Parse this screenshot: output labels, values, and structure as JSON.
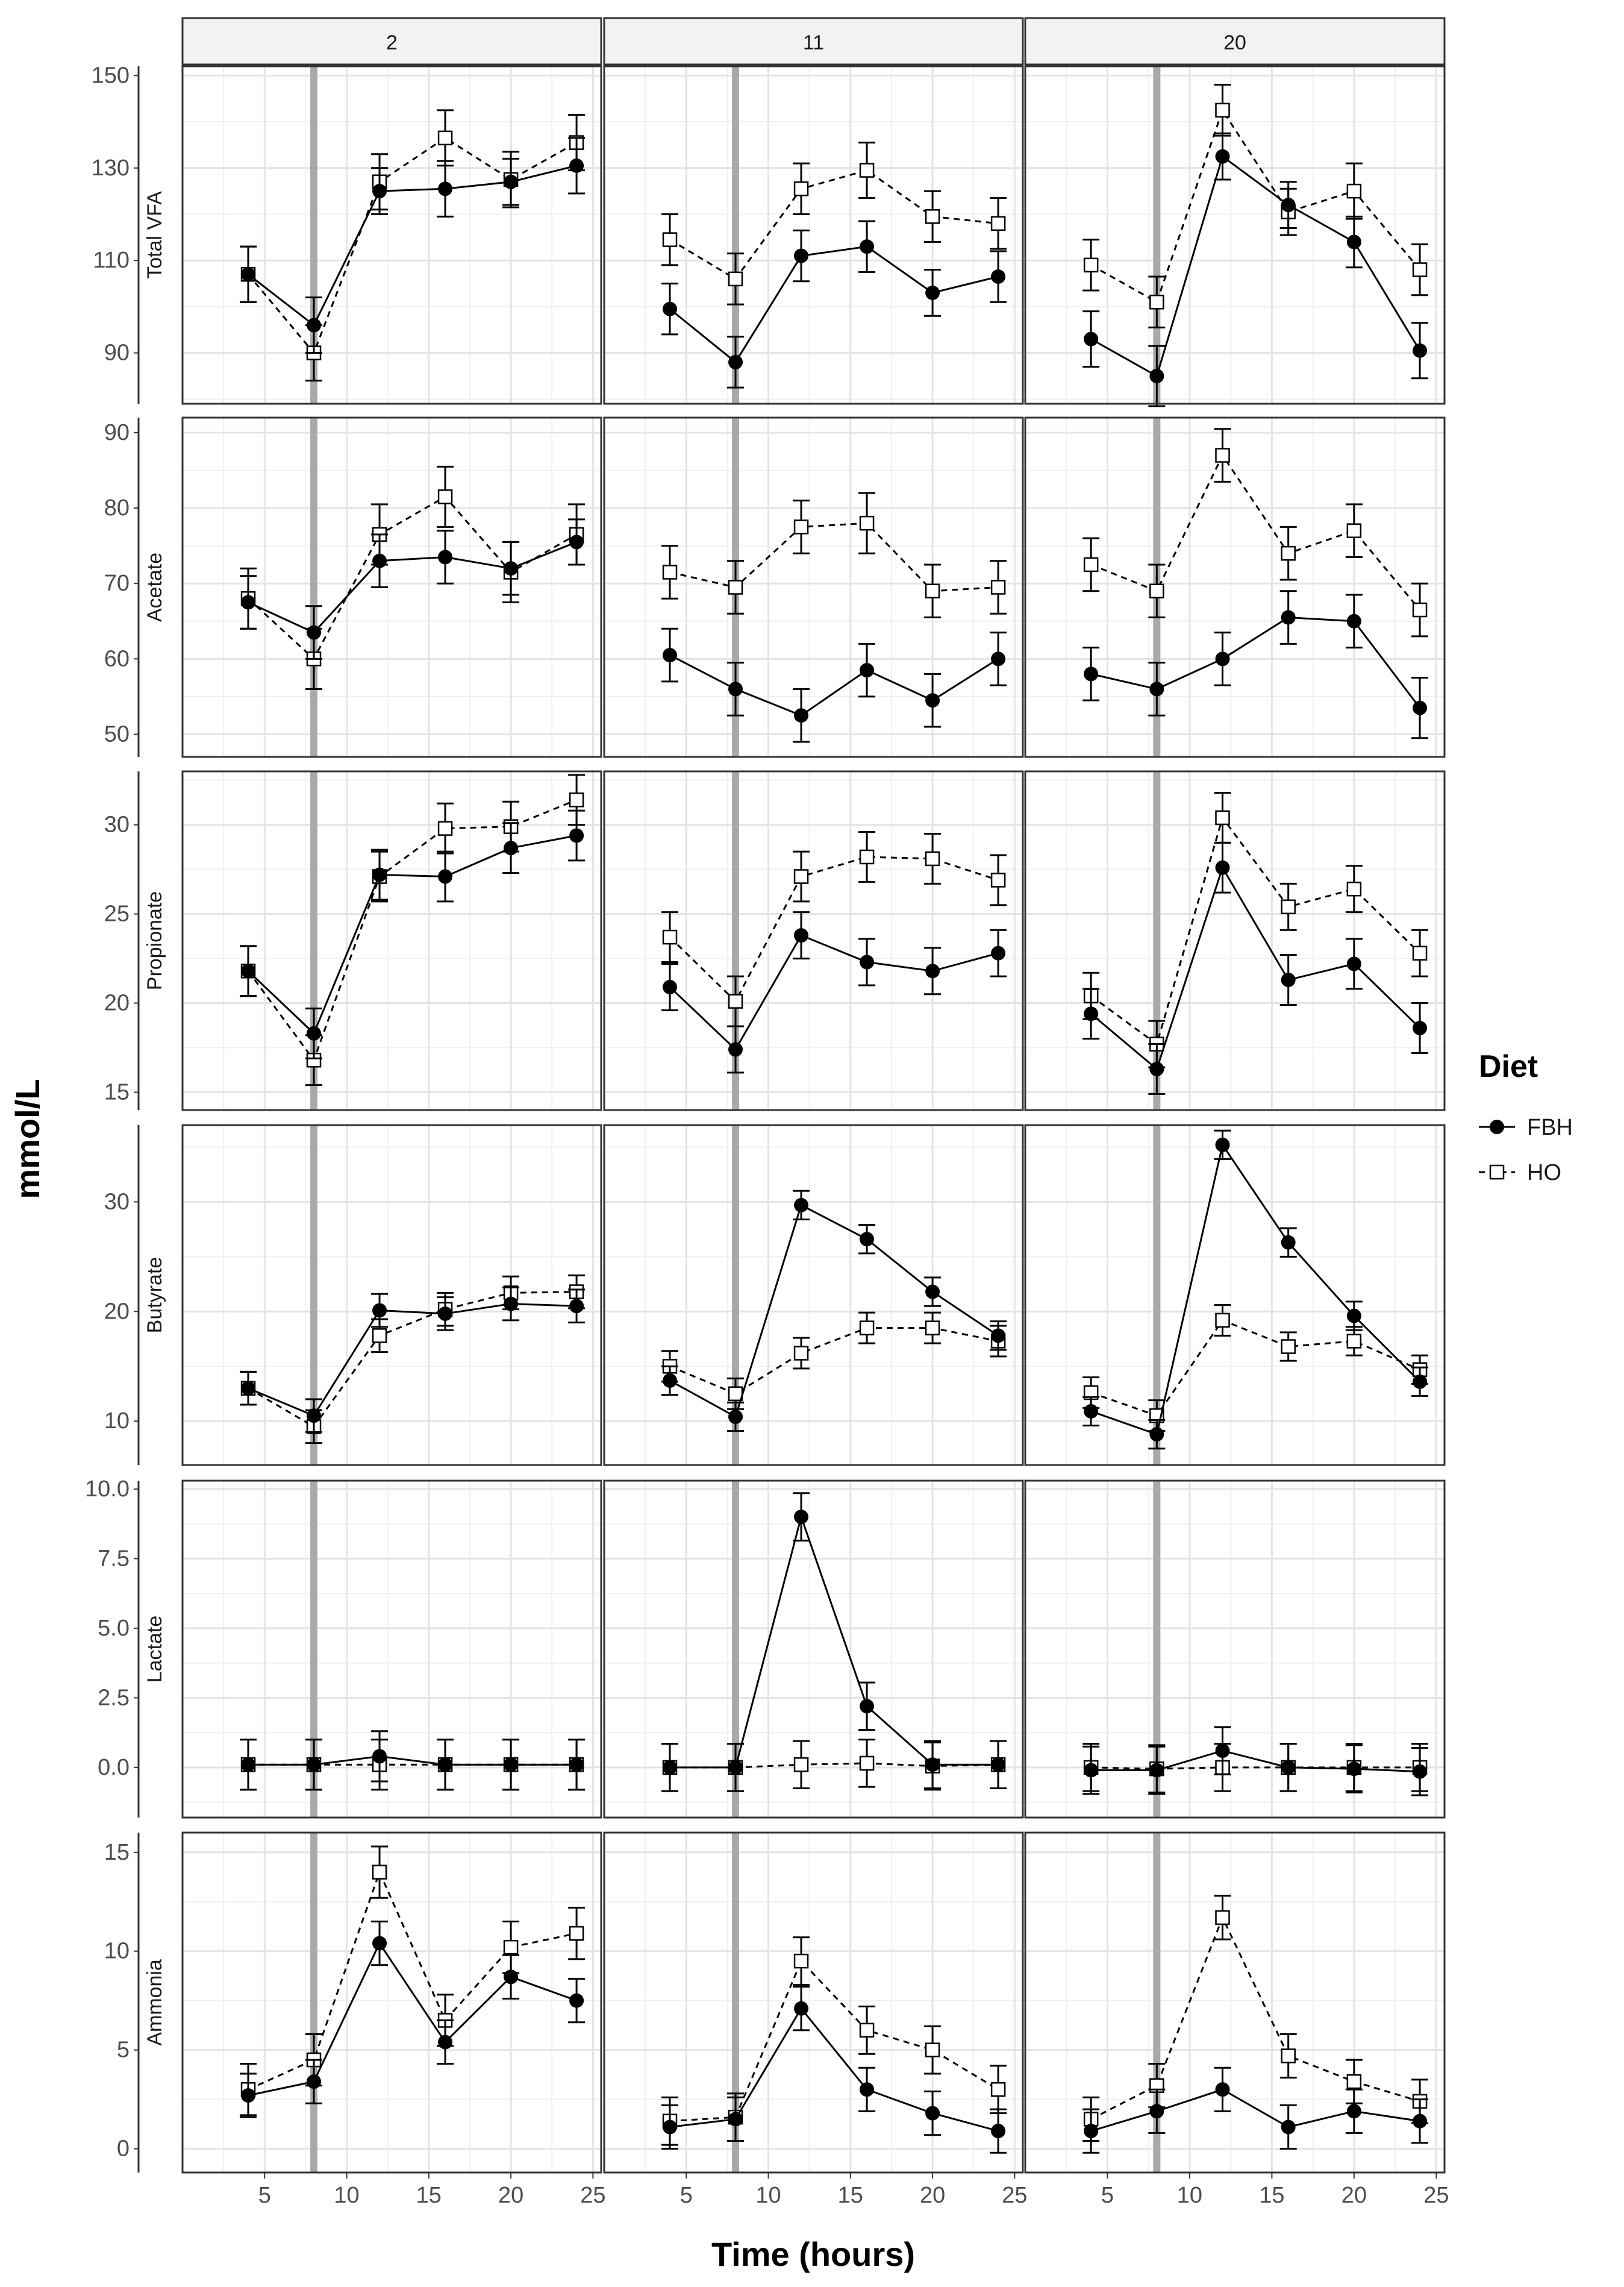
{
  "chart_data": {
    "type": "line",
    "facet_columns": [
      "2",
      "11",
      "20"
    ],
    "x": [
      4,
      8,
      12,
      16,
      20,
      24
    ],
    "xlim": [
      0,
      25.5
    ],
    "x_ticks": [
      5,
      10,
      15,
      20,
      25
    ],
    "vline_x": 8,
    "xlabel": "Time (hours)",
    "ylabel": "mmol/L",
    "legend": {
      "title": "Diet",
      "position": "right",
      "entries": [
        {
          "label": "FBH",
          "series": 0
        },
        {
          "label": "HO",
          "series": 1
        }
      ]
    },
    "series_style": [
      {
        "name": "FBH",
        "marker": "filled-circle",
        "line": "solid",
        "color": "#000000"
      },
      {
        "name": "HO",
        "marker": "open-square",
        "line": "dashed",
        "color": "#000000"
      }
    ],
    "panels": [
      {
        "label": "Total VFA",
        "ylim": [
          79,
          152
        ],
        "y_ticks": [
          "90",
          "110",
          "130",
          "150"
        ],
        "y_tick_values": [
          90,
          110,
          130,
          150
        ],
        "facets": [
          {
            "series": [
              {
                "name": "FBH",
                "values": [
                  107,
                  96,
                  125,
                  125.5,
                  127,
                  130.5
                ],
                "errors": [
                  6,
                  6,
                  5,
                  6,
                  5,
                  6
                ]
              },
              {
                "name": "HO",
                "values": [
                  107,
                  90,
                  127,
                  136.5,
                  127.5,
                  135.5
                ],
                "errors": [
                  6,
                  6,
                  6,
                  6,
                  6,
                  6
                ]
              }
            ]
          },
          {
            "series": [
              {
                "name": "FBH",
                "values": [
                  99.5,
                  88,
                  111,
                  113,
                  103,
                  106.5
                ],
                "errors": [
                  5.5,
                  5.5,
                  5.5,
                  5.5,
                  5,
                  5.5
                ]
              },
              {
                "name": "HO",
                "values": [
                  114.5,
                  106,
                  125.5,
                  129.5,
                  119.5,
                  118
                ],
                "errors": [
                  5.5,
                  5.5,
                  5.5,
                  6,
                  5.5,
                  5.5
                ]
              }
            ]
          },
          {
            "series": [
              {
                "name": "FBH",
                "values": [
                  93,
                  85,
                  132.5,
                  122,
                  114,
                  90.5
                ],
                "errors": [
                  6,
                  6.5,
                  5,
                  5,
                  5.5,
                  6
                ]
              },
              {
                "name": "HO",
                "values": [
                  109,
                  101,
                  142.5,
                  120.5,
                  125,
                  108
                ],
                "errors": [
                  5.5,
                  5.5,
                  5.5,
                  5,
                  6,
                  5.5
                ]
              }
            ]
          }
        ]
      },
      {
        "label": "Acetate",
        "ylim": [
          47,
          92
        ],
        "y_ticks": [
          "50",
          "60",
          "70",
          "80",
          "90"
        ],
        "y_tick_values": [
          50,
          60,
          70,
          80,
          90
        ],
        "facets": [
          {
            "series": [
              {
                "name": "FBH",
                "values": [
                  67.5,
                  63.5,
                  73,
                  73.5,
                  72,
                  75.5
                ],
                "errors": [
                  3.5,
                  3.5,
                  3.5,
                  3.5,
                  3.5,
                  3
                ]
              },
              {
                "name": "HO",
                "values": [
                  68,
                  60,
                  76.5,
                  81.5,
                  71.5,
                  76.5
                ],
                "errors": [
                  4,
                  4,
                  4,
                  4,
                  4,
                  4
                ]
              }
            ]
          },
          {
            "series": [
              {
                "name": "FBH",
                "values": [
                  60.5,
                  56,
                  52.5,
                  58.5,
                  54.5,
                  60
                ],
                "errors": [
                  3.5,
                  3.5,
                  3.5,
                  3.5,
                  3.5,
                  3.5
                ]
              },
              {
                "name": "HO",
                "values": [
                  71.5,
                  69.5,
                  77.5,
                  78,
                  69,
                  69.5
                ],
                "errors": [
                  3.5,
                  3.5,
                  3.5,
                  4,
                  3.5,
                  3.5
                ]
              }
            ]
          },
          {
            "series": [
              {
                "name": "FBH",
                "values": [
                  58,
                  56,
                  60,
                  65.5,
                  65,
                  53.5
                ],
                "errors": [
                  3.5,
                  3.5,
                  3.5,
                  3.5,
                  3.5,
                  4
                ]
              },
              {
                "name": "HO",
                "values": [
                  72.5,
                  69,
                  87,
                  74,
                  77,
                  66.5
                ],
                "errors": [
                  3.5,
                  3.5,
                  3.5,
                  3.5,
                  3.5,
                  3.5
                ]
              }
            ]
          }
        ]
      },
      {
        "label": "Propionate",
        "ylim": [
          14,
          33
        ],
        "y_ticks": [
          "15",
          "20",
          "25",
          "30"
        ],
        "y_tick_values": [
          15,
          20,
          25,
          30
        ],
        "facets": [
          {
            "series": [
              {
                "name": "FBH",
                "values": [
                  21.8,
                  18.3,
                  27.2,
                  27.1,
                  28.7,
                  29.4
                ],
                "errors": [
                  1.4,
                  1.4,
                  1.4,
                  1.4,
                  1.4,
                  1.4
                ]
              },
              {
                "name": "HO",
                "values": [
                  21.8,
                  16.8,
                  27.1,
                  29.8,
                  29.9,
                  31.4
                ],
                "errors": [
                  1.4,
                  1.4,
                  1.4,
                  1.4,
                  1.4,
                  1.4
                ]
              }
            ]
          },
          {
            "series": [
              {
                "name": "FBH",
                "values": [
                  20.9,
                  17.4,
                  23.8,
                  22.3,
                  21.8,
                  22.8
                ],
                "errors": [
                  1.3,
                  1.3,
                  1.3,
                  1.3,
                  1.3,
                  1.3
                ]
              },
              {
                "name": "HO",
                "values": [
                  23.7,
                  20.1,
                  27.1,
                  28.2,
                  28.1,
                  26.9
                ],
                "errors": [
                  1.4,
                  1.4,
                  1.4,
                  1.4,
                  1.4,
                  1.4
                ]
              }
            ]
          },
          {
            "series": [
              {
                "name": "FBH",
                "values": [
                  19.4,
                  16.3,
                  27.6,
                  21.3,
                  22.2,
                  18.6
                ],
                "errors": [
                  1.4,
                  1.4,
                  1.4,
                  1.4,
                  1.4,
                  1.4
                ]
              },
              {
                "name": "HO",
                "values": [
                  20.4,
                  17.7,
                  30.4,
                  25.4,
                  26.4,
                  22.8
                ],
                "errors": [
                  1.3,
                  1.3,
                  1.4,
                  1.3,
                  1.3,
                  1.3
                ]
              }
            ]
          }
        ]
      },
      {
        "label": "Butyrate",
        "ylim": [
          6,
          37
        ],
        "y_ticks": [
          "10",
          "20",
          "30"
        ],
        "y_tick_values": [
          10,
          20,
          30
        ],
        "facets": [
          {
            "series": [
              {
                "name": "FBH",
                "values": [
                  13,
                  10.5,
                  20.1,
                  19.8,
                  20.7,
                  20.5
                ],
                "errors": [
                  1.5,
                  1.5,
                  1.5,
                  1.5,
                  1.5,
                  1.5
                ]
              },
              {
                "name": "HO",
                "values": [
                  13,
                  9.5,
                  17.8,
                  20.2,
                  21.7,
                  21.8
                ],
                "errors": [
                  1.5,
                  1.5,
                  1.5,
                  1.5,
                  1.5,
                  1.5
                ]
              }
            ]
          },
          {
            "series": [
              {
                "name": "FBH",
                "values": [
                  13.7,
                  10.4,
                  29.7,
                  26.6,
                  21.8,
                  17.8
                ],
                "errors": [
                  1.3,
                  1.3,
                  1.3,
                  1.3,
                  1.3,
                  1.3
                ]
              },
              {
                "name": "HO",
                "values": [
                  15,
                  12.5,
                  16.2,
                  18.5,
                  18.5,
                  17.3
                ],
                "errors": [
                  1.4,
                  1.4,
                  1.4,
                  1.4,
                  1.4,
                  1.4
                ]
              }
            ]
          },
          {
            "series": [
              {
                "name": "FBH",
                "values": [
                  10.9,
                  8.8,
                  35.2,
                  26.3,
                  19.6,
                  13.6
                ],
                "errors": [
                  1.3,
                  1.3,
                  1.3,
                  1.3,
                  1.3,
                  1.3
                ]
              },
              {
                "name": "HO",
                "values": [
                  12.6,
                  10.5,
                  19.2,
                  16.8,
                  17.3,
                  14.7
                ],
                "errors": [
                  1.4,
                  1.4,
                  1.4,
                  1.3,
                  1.3,
                  1.3
                ]
              }
            ]
          }
        ]
      },
      {
        "label": "Lactate",
        "ylim": [
          -1.8,
          10.3
        ],
        "y_ticks": [
          "0.0",
          "2.5",
          "5.0",
          "7.5",
          "10.0"
        ],
        "y_tick_values": [
          0,
          2.5,
          5,
          7.5,
          10
        ],
        "facets": [
          {
            "series": [
              {
                "name": "FBH",
                "values": [
                  0.1,
                  0.1,
                  0.4,
                  0.1,
                  0.1,
                  0.1
                ],
                "errors": [
                  0.9,
                  0.9,
                  0.9,
                  0.9,
                  0.9,
                  0.9
                ]
              },
              {
                "name": "HO",
                "values": [
                  0.1,
                  0.1,
                  0.1,
                  0.1,
                  0.1,
                  0.1
                ],
                "errors": [
                  0.9,
                  0.9,
                  0.9,
                  0.9,
                  0.9,
                  0.9
                ]
              }
            ]
          },
          {
            "series": [
              {
                "name": "FBH",
                "values": [
                  0.0,
                  0.0,
                  9.0,
                  2.2,
                  0.1,
                  0.1
                ],
                "errors": [
                  0.85,
                  0.85,
                  0.85,
                  0.85,
                  0.85,
                  0.85
                ]
              },
              {
                "name": "HO",
                "values": [
                  0.0,
                  0.0,
                  0.1,
                  0.15,
                  0.05,
                  0.1
                ],
                "errors": [
                  0.85,
                  0.85,
                  0.85,
                  0.85,
                  0.85,
                  0.85
                ]
              }
            ]
          },
          {
            "series": [
              {
                "name": "FBH",
                "values": [
                  -0.1,
                  -0.1,
                  0.6,
                  0.0,
                  -0.05,
                  -0.15
                ],
                "errors": [
                  0.85,
                  0.85,
                  0.85,
                  0.85,
                  0.85,
                  0.85
                ]
              },
              {
                "name": "HO",
                "values": [
                  0.0,
                  -0.05,
                  0.0,
                  0.0,
                  0.0,
                  0.0
                ],
                "errors": [
                  0.85,
                  0.85,
                  0.85,
                  0.85,
                  0.85,
                  0.85
                ]
              }
            ]
          }
        ]
      },
      {
        "label": "Ammonia",
        "ylim": [
          -1.2,
          16
        ],
        "y_ticks": [
          "0",
          "5",
          "10",
          "15"
        ],
        "y_tick_values": [
          0,
          5,
          10,
          15
        ],
        "facets": [
          {
            "series": [
              {
                "name": "FBH",
                "values": [
                  2.7,
                  3.4,
                  10.4,
                  5.4,
                  8.7,
                  7.5
                ],
                "errors": [
                  1.1,
                  1.1,
                  1.1,
                  1.1,
                  1.1,
                  1.1
                ]
              },
              {
                "name": "HO",
                "values": [
                  3.0,
                  4.5,
                  14.0,
                  6.5,
                  10.2,
                  10.9
                ],
                "errors": [
                  1.3,
                  1.3,
                  1.3,
                  1.3,
                  1.3,
                  1.3
                ]
              }
            ]
          },
          {
            "series": [
              {
                "name": "FBH",
                "values": [
                  1.1,
                  1.5,
                  7.1,
                  3.0,
                  1.8,
                  0.9
                ],
                "errors": [
                  1.1,
                  1.1,
                  1.1,
                  1.1,
                  1.1,
                  1.1
                ]
              },
              {
                "name": "HO",
                "values": [
                  1.4,
                  1.6,
                  9.5,
                  6.0,
                  5.0,
                  3.0
                ],
                "errors": [
                  1.2,
                  1.2,
                  1.2,
                  1.2,
                  1.2,
                  1.2
                ]
              }
            ]
          },
          {
            "series": [
              {
                "name": "FBH",
                "values": [
                  0.9,
                  1.9,
                  3.0,
                  1.1,
                  1.9,
                  1.4
                ],
                "errors": [
                  1.1,
                  1.1,
                  1.1,
                  1.1,
                  1.1,
                  1.1
                ]
              },
              {
                "name": "HO",
                "values": [
                  1.5,
                  3.2,
                  11.7,
                  4.7,
                  3.4,
                  2.4
                ],
                "errors": [
                  1.1,
                  1.1,
                  1.1,
                  1.1,
                  1.1,
                  1.1
                ]
              }
            ]
          }
        ]
      }
    ]
  }
}
